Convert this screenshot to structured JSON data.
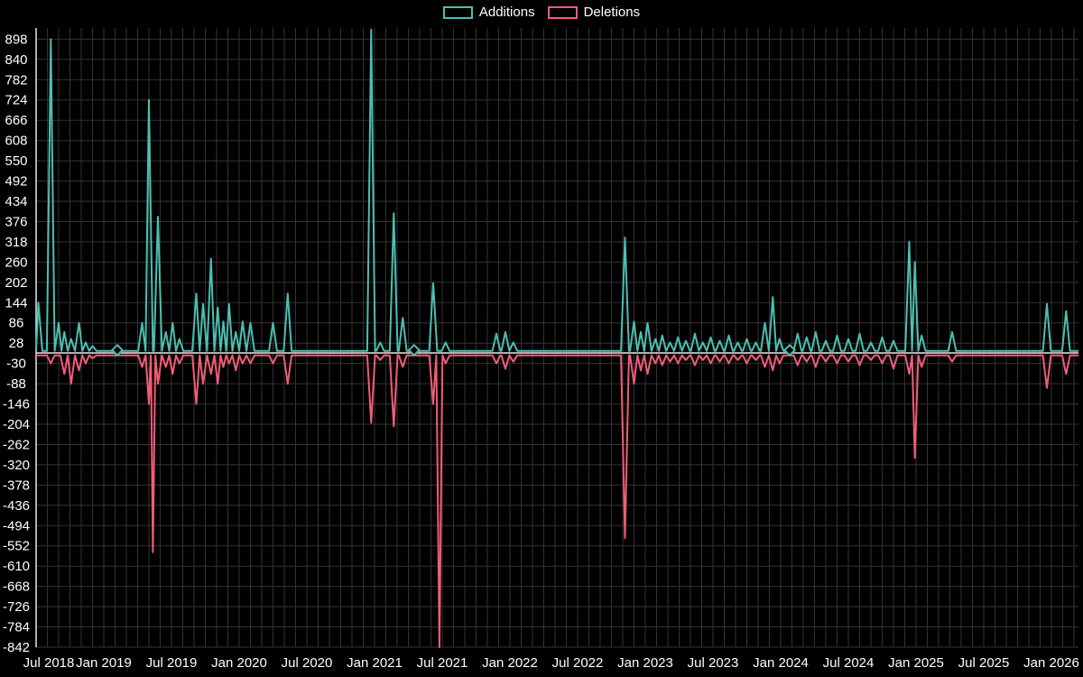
{
  "chart_data": {
    "type": "line",
    "title": "",
    "legend_position": "top-center",
    "grid": true,
    "colors": {
      "background": "#000000",
      "grid": "#333333",
      "axis": "#e8e8e8",
      "text": "#ffffff"
    },
    "series": [
      {
        "name": "Additions",
        "color": "#4cbfb2",
        "baseline": 6
      },
      {
        "name": "Deletions",
        "color": "#f25c78",
        "baseline": -7
      }
    ],
    "x_axis": {
      "tick_labels": [
        "Jul 2018",
        "Jan 2019",
        "Jul 2019",
        "Jan 2020",
        "Jul 2020",
        "Jan 2021",
        "Jul 2021",
        "Jan 2022",
        "Jul 2022",
        "Jan 2023",
        "Jul 2023",
        "Jan 2024",
        "Jul 2024",
        "Jan 2025",
        "Jul 2025",
        "Jan 2026"
      ],
      "tick_months": [
        0,
        6,
        12,
        18,
        24,
        30,
        36,
        42,
        48,
        54,
        60,
        66,
        72,
        78,
        84,
        90
      ]
    },
    "y_axis": {
      "ticks": [
        898,
        840,
        782,
        724,
        666,
        608,
        550,
        492,
        434,
        376,
        318,
        260,
        202,
        144,
        86,
        28,
        -30,
        -88,
        -146,
        -204,
        -262,
        -320,
        -378,
        -436,
        -494,
        -552,
        -610,
        -668,
        -726,
        -784,
        -842
      ],
      "plot_range": [
        -842,
        930
      ]
    },
    "x_range_months": [
      0,
      92.4
    ],
    "points_format": "[months_after_Jul_2018, additions, deletions]",
    "points": [
      [
        0.2,
        144,
        null
      ],
      [
        1.3,
        898,
        -30
      ],
      [
        2.0,
        86,
        null
      ],
      [
        2.5,
        60,
        -60
      ],
      [
        3.1,
        40,
        -88
      ],
      [
        3.8,
        86,
        -50
      ],
      [
        4.4,
        30,
        -30
      ],
      [
        5.0,
        20,
        -15
      ],
      [
        9.4,
        86,
        -40
      ],
      [
        10.0,
        724,
        -146
      ],
      [
        10.35,
        null,
        -570
      ],
      [
        10.8,
        390,
        -88
      ],
      [
        11.5,
        60,
        -40
      ],
      [
        12.1,
        86,
        -60
      ],
      [
        12.7,
        40,
        -30
      ],
      [
        14.2,
        170,
        -146
      ],
      [
        14.8,
        140,
        -88
      ],
      [
        15.5,
        270,
        -60
      ],
      [
        16.1,
        130,
        -88
      ],
      [
        16.6,
        90,
        -40
      ],
      [
        17.1,
        140,
        -30
      ],
      [
        17.7,
        60,
        -50
      ],
      [
        18.3,
        90,
        -30
      ],
      [
        19.0,
        86,
        -30
      ],
      [
        21.0,
        86,
        -30
      ],
      [
        22.3,
        170,
        -88
      ],
      [
        29.7,
        925,
        -200
      ],
      [
        30.5,
        30,
        -20
      ],
      [
        31.7,
        400,
        -210
      ],
      [
        32.5,
        100,
        -40
      ],
      [
        35.2,
        200,
        -146
      ],
      [
        35.75,
        null,
        -842
      ],
      [
        36.3,
        30,
        -30
      ],
      [
        40.8,
        55,
        -30
      ],
      [
        41.6,
        60,
        -45
      ],
      [
        42.3,
        30,
        -25
      ],
      [
        52.2,
        330,
        -530
      ],
      [
        53.0,
        90,
        -88
      ],
      [
        53.6,
        60,
        -50
      ],
      [
        54.2,
        86,
        -60
      ],
      [
        54.9,
        40,
        -30
      ],
      [
        55.5,
        50,
        -35
      ],
      [
        56.2,
        30,
        -25
      ],
      [
        56.9,
        45,
        -30
      ],
      [
        57.6,
        35,
        -20
      ],
      [
        58.4,
        55,
        -35
      ],
      [
        59.1,
        30,
        -20
      ],
      [
        59.8,
        45,
        -30
      ],
      [
        60.6,
        35,
        -25
      ],
      [
        61.4,
        50,
        -30
      ],
      [
        62.2,
        30,
        -20
      ],
      [
        63.0,
        40,
        -30
      ],
      [
        63.8,
        30,
        -20
      ],
      [
        64.6,
        86,
        -40
      ],
      [
        65.3,
        160,
        -50
      ],
      [
        65.9,
        40,
        -30
      ],
      [
        67.5,
        55,
        -35
      ],
      [
        68.3,
        45,
        -25
      ],
      [
        69.1,
        60,
        -40
      ],
      [
        70.0,
        35,
        -25
      ],
      [
        71.0,
        50,
        -30
      ],
      [
        72.0,
        40,
        -25
      ],
      [
        73.0,
        55,
        -35
      ],
      [
        74.0,
        30,
        -20
      ],
      [
        75.0,
        45,
        -30
      ],
      [
        76.0,
        35,
        -45
      ],
      [
        77.4,
        318,
        -60
      ],
      [
        77.9,
        260,
        -300
      ],
      [
        78.5,
        50,
        -40
      ],
      [
        81.2,
        60,
        -25
      ],
      [
        89.6,
        140,
        -100
      ],
      [
        91.3,
        120,
        -60
      ]
    ],
    "isolated_markers": [
      [
        7.2,
        8
      ],
      [
        33.5,
        8
      ],
      [
        66.8,
        8
      ]
    ]
  }
}
